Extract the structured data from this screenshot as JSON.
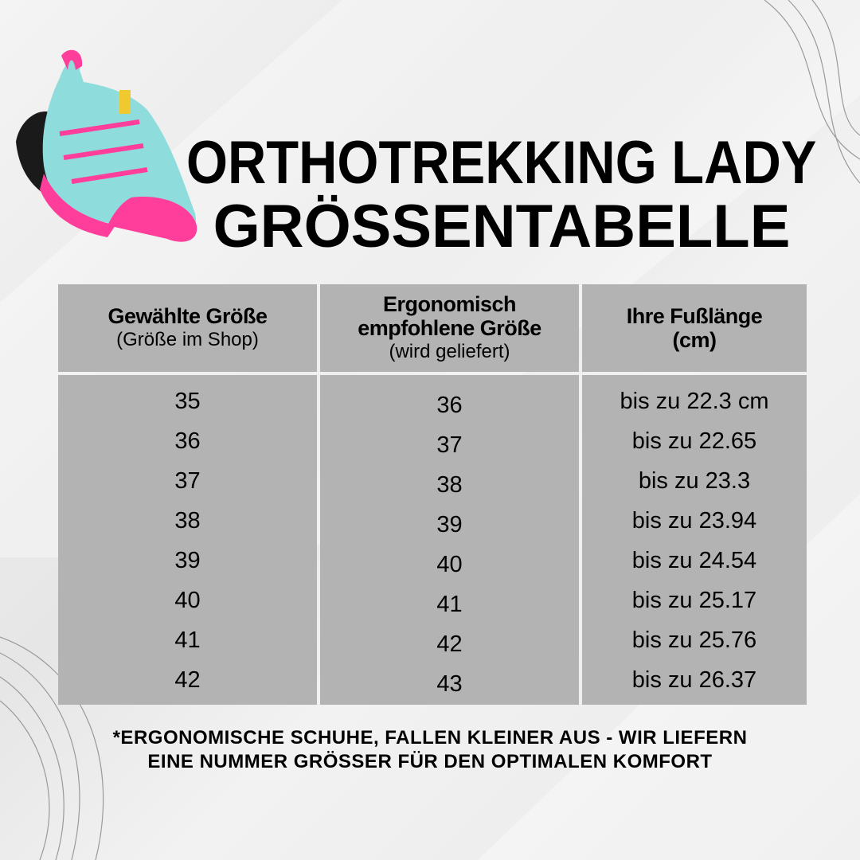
{
  "title": {
    "line1": "ORTHOTREKKING LADY",
    "line2": "GRÖSSENTABELLE"
  },
  "product_image": {
    "icon": "trekking-shoe-image",
    "colors": [
      "#8fdcdc",
      "#ff3d9a",
      "#1a1a1a",
      "#f0c830"
    ]
  },
  "table": {
    "headers": [
      {
        "bold": [
          "Gewählte Größe"
        ],
        "normal": "(Größe im Shop)"
      },
      {
        "bold": [
          "Ergonomisch",
          "empfohlene Größe"
        ],
        "normal": "(wird geliefert)"
      },
      {
        "bold": [
          "Ihre Fußlänge",
          "(cm)"
        ],
        "normal": ""
      }
    ],
    "columns": [
      [
        "35",
        "36",
        "37",
        "38",
        "39",
        "40",
        "41",
        "42"
      ],
      [
        "36",
        "37",
        "38",
        "39",
        "40",
        "41",
        "42",
        "43"
      ],
      [
        "bis zu 22.3 cm",
        "bis zu 22.65",
        "bis zu 23.3",
        "bis zu 23.94",
        "bis zu 24.54",
        "bis zu 25.17",
        "bis zu 25.76",
        "bis zu 26.37"
      ]
    ],
    "cell_color": "#b3b3b3"
  },
  "footnote": {
    "line1": "*ERGONOMISCHE SCHUHE, FALLEN KLEINER AUS - WIR LIEFERN",
    "line2": "EINE NUMMER GRÖSSER FÜR DEN OPTIMALEN KOMFORT"
  }
}
